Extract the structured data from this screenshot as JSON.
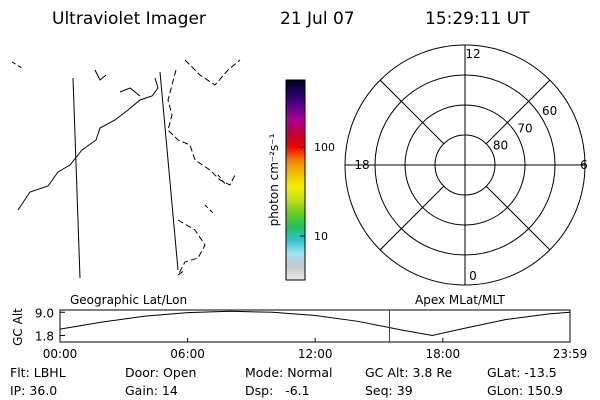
{
  "header": {
    "instrument": "Ultraviolet Imager",
    "date": "21 Jul 07",
    "time": "15:29:11 UT"
  },
  "colorbar": {
    "label": "photon cm⁻²s⁻¹",
    "scale": "log",
    "clim": [
      3.2,
      570
    ],
    "ticks": [
      10,
      100
    ],
    "colors": [
      "#e8e8e8",
      "#c8c8c8",
      "#a0e0f0",
      "#30c0d0",
      "#20c060",
      "#60d020",
      "#c0e020",
      "#f0f000",
      "#f0c000",
      "#f08000",
      "#f00000",
      "#c00030",
      "#b00090",
      "#600090",
      "#200060",
      "#000020"
    ]
  },
  "polar": {
    "rlim": [
      90,
      50
    ],
    "rticks": [
      80,
      70,
      60
    ],
    "mlt_ticks": [
      0,
      6,
      12,
      18
    ]
  },
  "chart_data": {
    "type": "line",
    "ylabel": "GC Alt",
    "left_label": "Geographic Lat/Lon",
    "right_label": "Apex MLat/MLT",
    "x": [
      0,
      2,
      4,
      6,
      8,
      10,
      12,
      14,
      16,
      17.5,
      19,
      21,
      23,
      23.98
    ],
    "values": [
      3.8,
      6.0,
      7.8,
      8.9,
      9.3,
      9.0,
      8.0,
      6.2,
      3.6,
      1.8,
      4.0,
      6.8,
      8.5,
      9.0
    ],
    "color": "#000000",
    "marker_x": 15.49,
    "marker_color": "#d00000",
    "xlim": [
      0,
      23.98
    ],
    "ylim": [
      -0.2,
      9.7
    ],
    "xticks": [
      {
        "value": 0,
        "label": "00:00"
      },
      {
        "value": 6,
        "label": "06:00"
      },
      {
        "value": 12,
        "label": "12:00"
      },
      {
        "value": 18,
        "label": "18:00"
      },
      {
        "value": 23.98,
        "label": "23:59"
      }
    ],
    "yticks": [
      {
        "value": 1.8,
        "label": "1.8"
      },
      {
        "value": 9.0,
        "label": "9.0"
      }
    ]
  },
  "footer": [
    [
      "Flt: LBHL",
      "Door: Open",
      "Mode: Normal",
      "GC Alt: 3.8 Re",
      "GLat: -13.5"
    ],
    [
      "IP: 36.0",
      "Gain: 14",
      "Dsp:   -6.1",
      "Seq: 39",
      "GLon: 150.9"
    ]
  ]
}
